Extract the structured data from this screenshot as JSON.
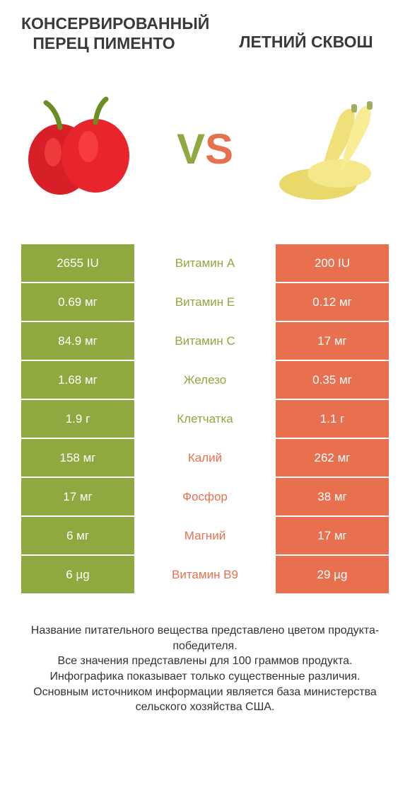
{
  "colors": {
    "green": "#8fa83f",
    "orange": "#e8704f",
    "text_dark": "#3a3a3a",
    "white": "#ffffff",
    "pepper_red": "#d61f26",
    "pepper_stem": "#6b8e23",
    "squash_yellow": "#f0e07a",
    "squash_stem": "#9fae5e"
  },
  "left_title": "КОНСЕРВИРОВАННЫЙ ПЕРЕЦ ПИМЕНТО",
  "right_title": "ЛЕТНИЙ СКВОШ",
  "vs_v": "V",
  "vs_s": "S",
  "table": {
    "rows": [
      {
        "left": "2655 IU",
        "label": "Витамин A",
        "right": "200 IU",
        "winner": "left"
      },
      {
        "left": "0.69 мг",
        "label": "Витамин E",
        "right": "0.12 мг",
        "winner": "left"
      },
      {
        "left": "84.9 мг",
        "label": "Витамин C",
        "right": "17 мг",
        "winner": "left"
      },
      {
        "left": "1.68 мг",
        "label": "Железо",
        "right": "0.35 мг",
        "winner": "left"
      },
      {
        "left": "1.9 г",
        "label": "Клетчатка",
        "right": "1.1 г",
        "winner": "left"
      },
      {
        "left": "158 мг",
        "label": "Калий",
        "right": "262 мг",
        "winner": "right"
      },
      {
        "left": "17 мг",
        "label": "Фосфор",
        "right": "38 мг",
        "winner": "right"
      },
      {
        "left": "6 мг",
        "label": "Магний",
        "right": "17 мг",
        "winner": "right"
      },
      {
        "left": "6 µg",
        "label": "Витамин B9",
        "right": "29 µg",
        "winner": "right"
      }
    ]
  },
  "footer_lines": [
    "Название питательного вещества представлено цветом продукта-победителя.",
    "Все значения представлены для 100 граммов продукта.",
    "Инфографика показывает только существенные различия.",
    "Основным источником информации является база министерства сельского хозяйства США."
  ]
}
